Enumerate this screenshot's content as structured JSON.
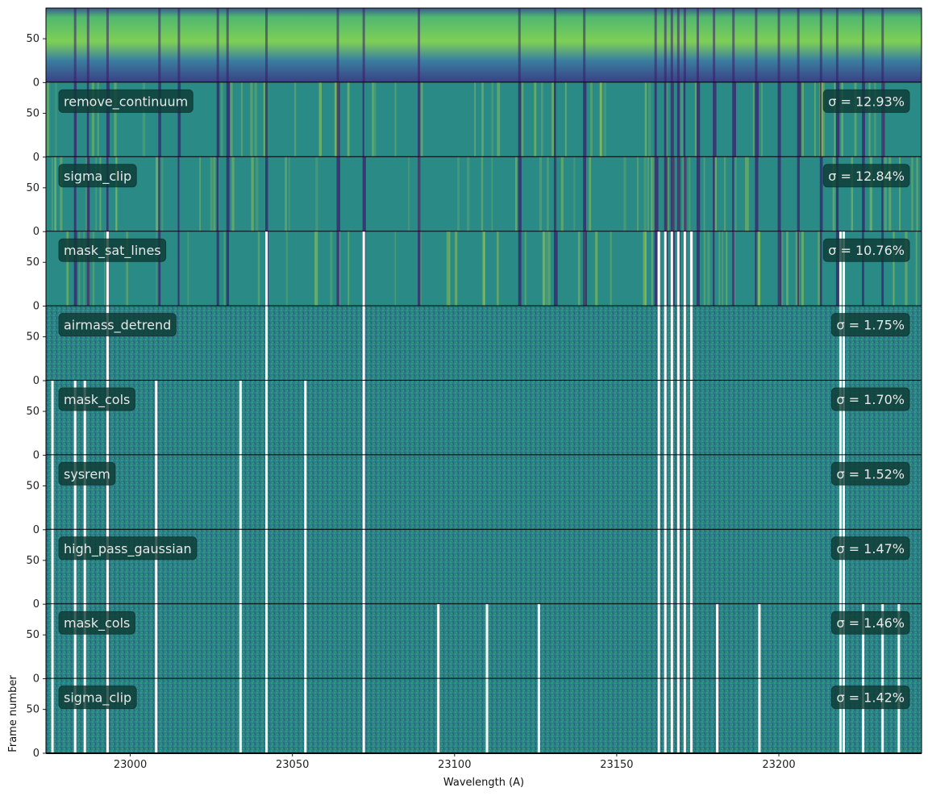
{
  "chart_data": {
    "type": "heatmap",
    "xlabel": "Wavelength (A)",
    "ylabel": "Frame number",
    "xlim": [
      22974,
      23244
    ],
    "x_ticks": [
      23000,
      23050,
      23100,
      23150,
      23200
    ],
    "x_tick_labels": [
      "23000",
      "23050",
      "23100",
      "23150",
      "23200"
    ],
    "ylim": [
      0,
      85
    ],
    "y_ticks": [
      0,
      50
    ],
    "y_tick_labels": [
      "0",
      "50"
    ],
    "colormap": "viridis",
    "panels": [
      {
        "label": "",
        "sigma": ""
      },
      {
        "label": "remove_continuum",
        "sigma": "σ = 12.93%"
      },
      {
        "label": "sigma_clip",
        "sigma": "σ = 12.84%"
      },
      {
        "label": "mask_sat_lines",
        "sigma": "σ = 10.76%"
      },
      {
        "label": "airmass_detrend",
        "sigma": "σ = 1.75%"
      },
      {
        "label": "mask_cols",
        "sigma": "σ = 1.70%"
      },
      {
        "label": "sysrem",
        "sigma": "σ = 1.52%"
      },
      {
        "label": "high_pass_gaussian",
        "sigma": "σ = 1.47%"
      },
      {
        "label": "mask_cols",
        "sigma": "σ = 1.46%"
      },
      {
        "label": "sigma_clip",
        "sigma": "σ = 1.42%"
      }
    ]
  },
  "colors": {
    "background_panel": "#2a8a86",
    "residual_panel": "#2b7f82",
    "absorption_line": "#3b1a6a",
    "bright_line": "#c6e03a",
    "label_box": "#0e3a34",
    "label_text": "#e8e8e8",
    "separator": "#000000",
    "masked": "#ffffff"
  }
}
